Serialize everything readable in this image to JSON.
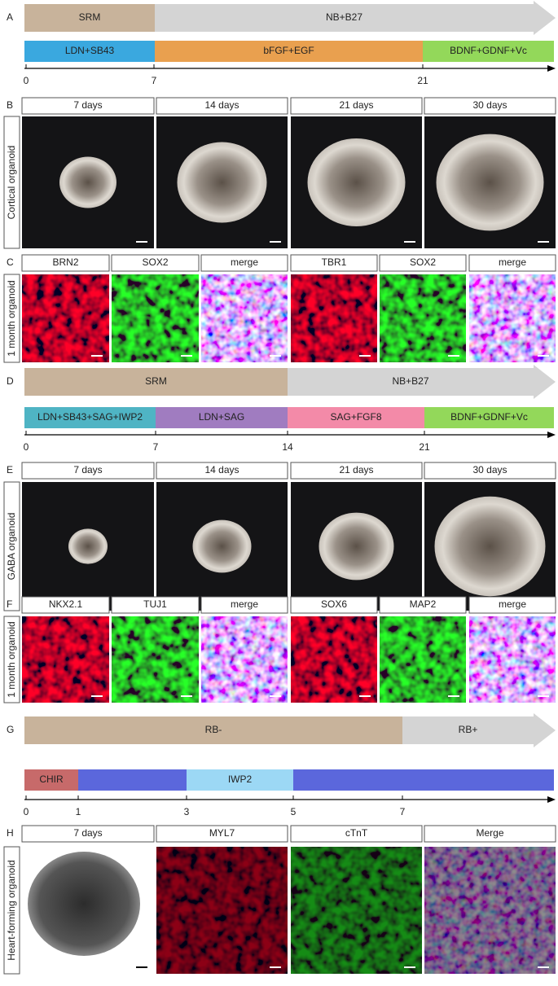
{
  "timelines": [
    {
      "label": "A",
      "media": [
        "SRM",
        "NB+B27"
      ],
      "stages": [
        "LDN+SB43",
        "bFGF+EGF",
        "BDNF+GDNF+Vc"
      ],
      "stage_colors": [
        "#3aa8df",
        "#e9a04f",
        "#93d85a"
      ],
      "ticks": [
        0,
        7,
        21
      ]
    },
    {
      "label": "D",
      "media": [
        "SRM",
        "NB+B27"
      ],
      "stages": [
        "LDN+SB43+SAG+IWP2",
        "LDN+SAG",
        "SAG+FGF8",
        "BDNF+GDNF+Vc"
      ],
      "stage_colors": [
        "#4fb4c4",
        "#a07cc0",
        "#f38aa8",
        "#93d85a"
      ],
      "ticks": [
        0,
        7,
        14,
        21
      ]
    },
    {
      "label": "G",
      "media": [
        "RB-",
        "RB+"
      ],
      "stages": [
        "CHIR",
        null,
        "IWP2",
        null
      ],
      "stage_colors": [
        "#c76a6a",
        "#5b67dc",
        "#9cd8f5",
        "#5b67dc"
      ],
      "ticks": [
        0,
        1,
        3,
        5,
        7
      ]
    }
  ],
  "image_rows": [
    {
      "label": "B",
      "side": "Cortical organoid",
      "headers": [
        "7 days",
        "14 days",
        "21 days",
        "30 days"
      ],
      "header_colors": [
        "#000",
        "#000",
        "#000",
        "#000"
      ]
    },
    {
      "label": "C",
      "side": "1 month organoid",
      "headers": [
        "BRN2",
        "SOX2",
        "merge",
        "TBR1",
        "SOX2",
        "merge"
      ],
      "header_colors": [
        "#e02020",
        "#2ab82a",
        "#000",
        "#e02020",
        "#2ab82a",
        "#000"
      ]
    },
    {
      "label": "E",
      "side": "GABA organoid",
      "headers": [
        "7 days",
        "14 days",
        "21 days",
        "30 days"
      ],
      "header_colors": [
        "#000",
        "#000",
        "#000",
        "#000"
      ]
    },
    {
      "label": "F",
      "side": "1 month organoid",
      "headers": [
        "NKX2.1",
        "TUJ1",
        "merge",
        "SOX6",
        "MAP2",
        "merge"
      ],
      "header_colors": [
        "#e02020",
        "#2ab82a",
        "#000",
        "#e02020",
        "#2ab82a",
        "#000"
      ]
    },
    {
      "label": "H",
      "side": "Heart-forming organoid",
      "headers": [
        "7 days",
        "MYL7",
        "cTnT",
        "Merge"
      ],
      "header_colors": [
        "#000",
        "#e02020",
        "#2ab82a",
        "#000"
      ]
    }
  ]
}
